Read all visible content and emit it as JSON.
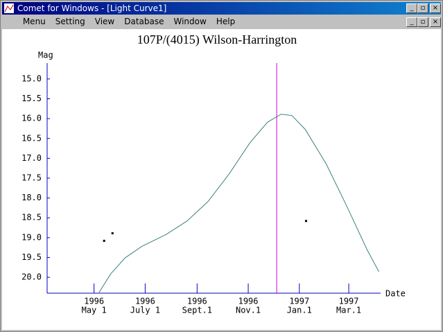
{
  "window": {
    "title": "Comet for Windows - [Light Curve1]",
    "menu": [
      "Menu",
      "Setting",
      "View",
      "Database",
      "Window",
      "Help"
    ]
  },
  "chart_data": {
    "type": "line",
    "title": "107P/(4015) Wilson-Harrington",
    "y_label": "Mag",
    "x_label": "Date",
    "xlim": [
      "1996-03-06",
      "1997-04-08"
    ],
    "ylim": [
      20.4,
      14.6
    ],
    "yticks": [
      {
        "value": 15,
        "label": "15.0"
      },
      15.5,
      {
        "value": 16,
        "label": "16.0"
      },
      16.5,
      {
        "value": 17,
        "label": "17.0"
      },
      17.5,
      {
        "value": 18,
        "label": "18.0"
      },
      18.5,
      {
        "value": 19,
        "label": "19.0"
      },
      19.5,
      {
        "value": 20,
        "label": "20.0"
      }
    ],
    "xticks": [
      {
        "value": "1996-05-01",
        "label": [
          "1996",
          "May 1"
        ]
      },
      {
        "value": "1996-07-01",
        "label": [
          "1996",
          "July 1"
        ]
      },
      {
        "value": "1996-09-01",
        "label": [
          "1996",
          "Sept.1"
        ]
      },
      {
        "value": "1996-11-01",
        "label": [
          "1996",
          "Nov.1"
        ]
      },
      {
        "value": "1997-01-01",
        "label": [
          "1997",
          "Jan.1"
        ]
      },
      {
        "value": "1997-03-01",
        "label": [
          "1997",
          "Mar.1"
        ]
      }
    ],
    "series": [
      {
        "color": "#3c7f80",
        "x": [
          "1996-05-07",
          "1996-05-21",
          "1996-06-07",
          "1996-06-27",
          "1996-07-26",
          "1996-08-20",
          "1996-09-14",
          "1996-10-09",
          "1996-11-03",
          "1996-11-24",
          "1996-12-10",
          "1996-12-23",
          "1997-01-08",
          "1997-02-02",
          "1997-02-26",
          "1997-03-23",
          "1997-04-06"
        ],
        "values": [
          20.38,
          19.91,
          19.51,
          19.22,
          18.92,
          18.58,
          18.09,
          17.4,
          16.61,
          16.09,
          15.89,
          15.92,
          16.27,
          17.14,
          18.18,
          19.31,
          19.86
        ]
      },
      {
        "type": "scatter",
        "color": "#000000",
        "x": [
          "1996-05-13",
          "1996-05-23",
          "1997-01-09"
        ],
        "values": [
          19.08,
          18.89,
          18.58
        ]
      }
    ],
    "vline": {
      "x": "1996-12-05",
      "color": "#d000d0"
    }
  }
}
